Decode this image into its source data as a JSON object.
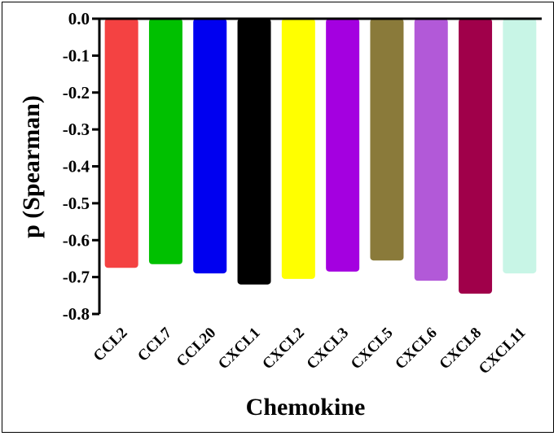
{
  "chart_data": {
    "type": "bar",
    "xlabel": "Chemokine",
    "ylabel": "p (Spearman)",
    "ylim": [
      -0.8,
      0.0
    ],
    "yticks": [
      "0.0",
      "-0.1",
      "-0.2",
      "-0.3",
      "-0.4",
      "-0.5",
      "-0.6",
      "-0.7",
      "-0.8"
    ],
    "ytick_values": [
      0.0,
      -0.1,
      -0.2,
      -0.3,
      -0.4,
      -0.5,
      -0.6,
      -0.7,
      -0.8
    ],
    "categories": [
      "CCL2",
      "CCL7",
      "CCL20",
      "CXCL1",
      "CXCL2",
      "CXCL3",
      "CXCL5",
      "CXCL6",
      "CXCL8",
      "CXCL11"
    ],
    "values": [
      -0.675,
      -0.665,
      -0.69,
      -0.72,
      -0.705,
      -0.685,
      -0.655,
      -0.71,
      -0.745,
      -0.69
    ],
    "colors": [
      "#f44242",
      "#00c000",
      "#0000f0",
      "#000000",
      "#ffff00",
      "#a400e0",
      "#8a7a3a",
      "#b259d8",
      "#a0004a",
      "#c8f5e6"
    ],
    "grid": false,
    "legend": "none"
  }
}
